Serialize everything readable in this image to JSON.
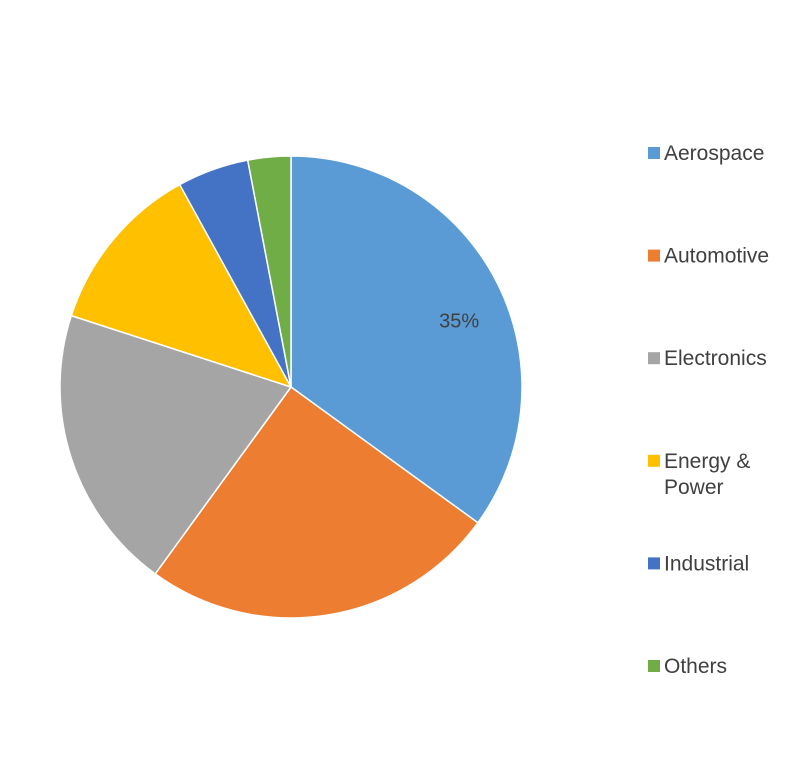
{
  "chart_data": {
    "type": "pie",
    "title": "",
    "start_angle_deg": 90,
    "direction": "clockwise",
    "legend_position": "right",
    "slices": [
      {
        "name": "Aerospace",
        "value": 35,
        "color": "#5B9BD5",
        "label": "35%"
      },
      {
        "name": "Automotive",
        "value": 25,
        "color": "#ED7D31",
        "label": ""
      },
      {
        "name": "Electronics",
        "value": 20,
        "color": "#A5A5A5",
        "label": ""
      },
      {
        "name": "Energy & Power",
        "value": 12,
        "color": "#FFC000",
        "label": ""
      },
      {
        "name": "Industrial",
        "value": 5,
        "color": "#4472C4",
        "label": ""
      },
      {
        "name": "Others",
        "value": 3,
        "color": "#70AD47",
        "label": ""
      }
    ]
  }
}
